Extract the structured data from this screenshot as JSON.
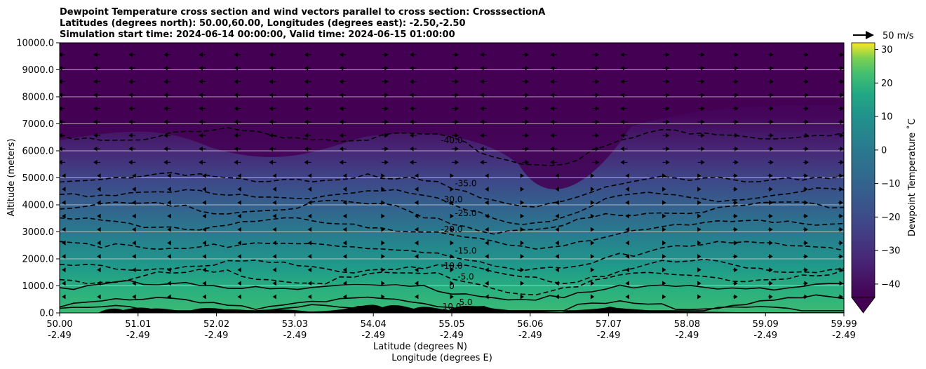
{
  "chart_data": {
    "type": "heatmap",
    "title_lines": [
      "Dewpoint Temperature cross section and wind vectors parallel to cross section: CrosssectionA",
      "Latitudes (degrees north): 50.00,60.00, Longitudes (degrees east): -2.50,-2.50",
      "Simulation start time: 2024-06-14 00:00:00, Valid time: 2024-06-15 01:00:00"
    ],
    "ylabel": "Altitude (meters)",
    "xlabel": "Latitude (degrees N)",
    "xlabel2": "Longitude (degrees E)",
    "ylim": [
      0,
      10000
    ],
    "y_ticks": [
      "0.0",
      "1000.0",
      "2000.0",
      "3000.0",
      "4000.0",
      "5000.0",
      "6000.0",
      "7000.0",
      "8000.0",
      "9000.0",
      "10000.0"
    ],
    "x_ticks_lat": [
      "50.00",
      "51.01",
      "52.02",
      "53.03",
      "54.04",
      "55.05",
      "56.06",
      "57.07",
      "58.08",
      "59.09",
      "59.99"
    ],
    "x_ticks_lon": [
      "-2.49",
      "-2.49",
      "-2.49",
      "-2.49",
      "-2.49",
      "-2.49",
      "-2.49",
      "-2.49",
      "-2.49",
      "-2.49",
      "-2.49"
    ],
    "colorbar": {
      "label": "Dewpoint Temperature ˚C",
      "range": [
        -44,
        32
      ],
      "ticks": [
        "30",
        "20",
        "10",
        "0",
        "−10",
        "−20",
        "−30",
        "−40"
      ],
      "tick_values": [
        30,
        20,
        10,
        0,
        -10,
        -20,
        -30,
        -40
      ],
      "extend": "min",
      "colormap": "viridis"
    },
    "contour_levels": [
      {
        "value": -40,
        "label": "-40.0",
        "style": "dashed",
        "altitude_m": 6600
      },
      {
        "value": -35,
        "label": "-35.0",
        "style": "dashed",
        "altitude_m": 5000
      },
      {
        "value": -30,
        "label": "-30.0",
        "style": "dashed",
        "altitude_m": 4400
      },
      {
        "value": -25,
        "label": "-25.0",
        "style": "dashed",
        "altitude_m": 3900
      },
      {
        "value": -20,
        "label": "-20.0",
        "style": "dashed",
        "altitude_m": 3300
      },
      {
        "value": -15,
        "label": "-15.0",
        "style": "dashed",
        "altitude_m": 2500
      },
      {
        "value": -10,
        "label": "-10.0",
        "style": "dashed",
        "altitude_m": 1750
      },
      {
        "value": -5,
        "label": "-5.0",
        "style": "dashed",
        "altitude_m": 1350
      },
      {
        "value": 0,
        "label": "0",
        "style": "solid",
        "altitude_m": 1000
      },
      {
        "value": 5,
        "label": "5.0",
        "style": "solid",
        "altitude_m": 400
      },
      {
        "value": 10,
        "label": "10.0",
        "style": "solid",
        "altitude_m": 50
      }
    ],
    "wind_key": {
      "label": "50 m/s",
      "value": 50,
      "unit": "m/s"
    },
    "wind_direction": "alternating along cross-section (leftward near 51°N aloft, rightward near 59°N)",
    "terrain": "black orography silhouette along surface (up to ~400 m)",
    "grid": "horizontal lines only"
  },
  "colors": {
    "viridis_low": "#440154",
    "viridis_high": "#fde725",
    "terrain": "#000000",
    "grid": "#d9d9d9"
  }
}
